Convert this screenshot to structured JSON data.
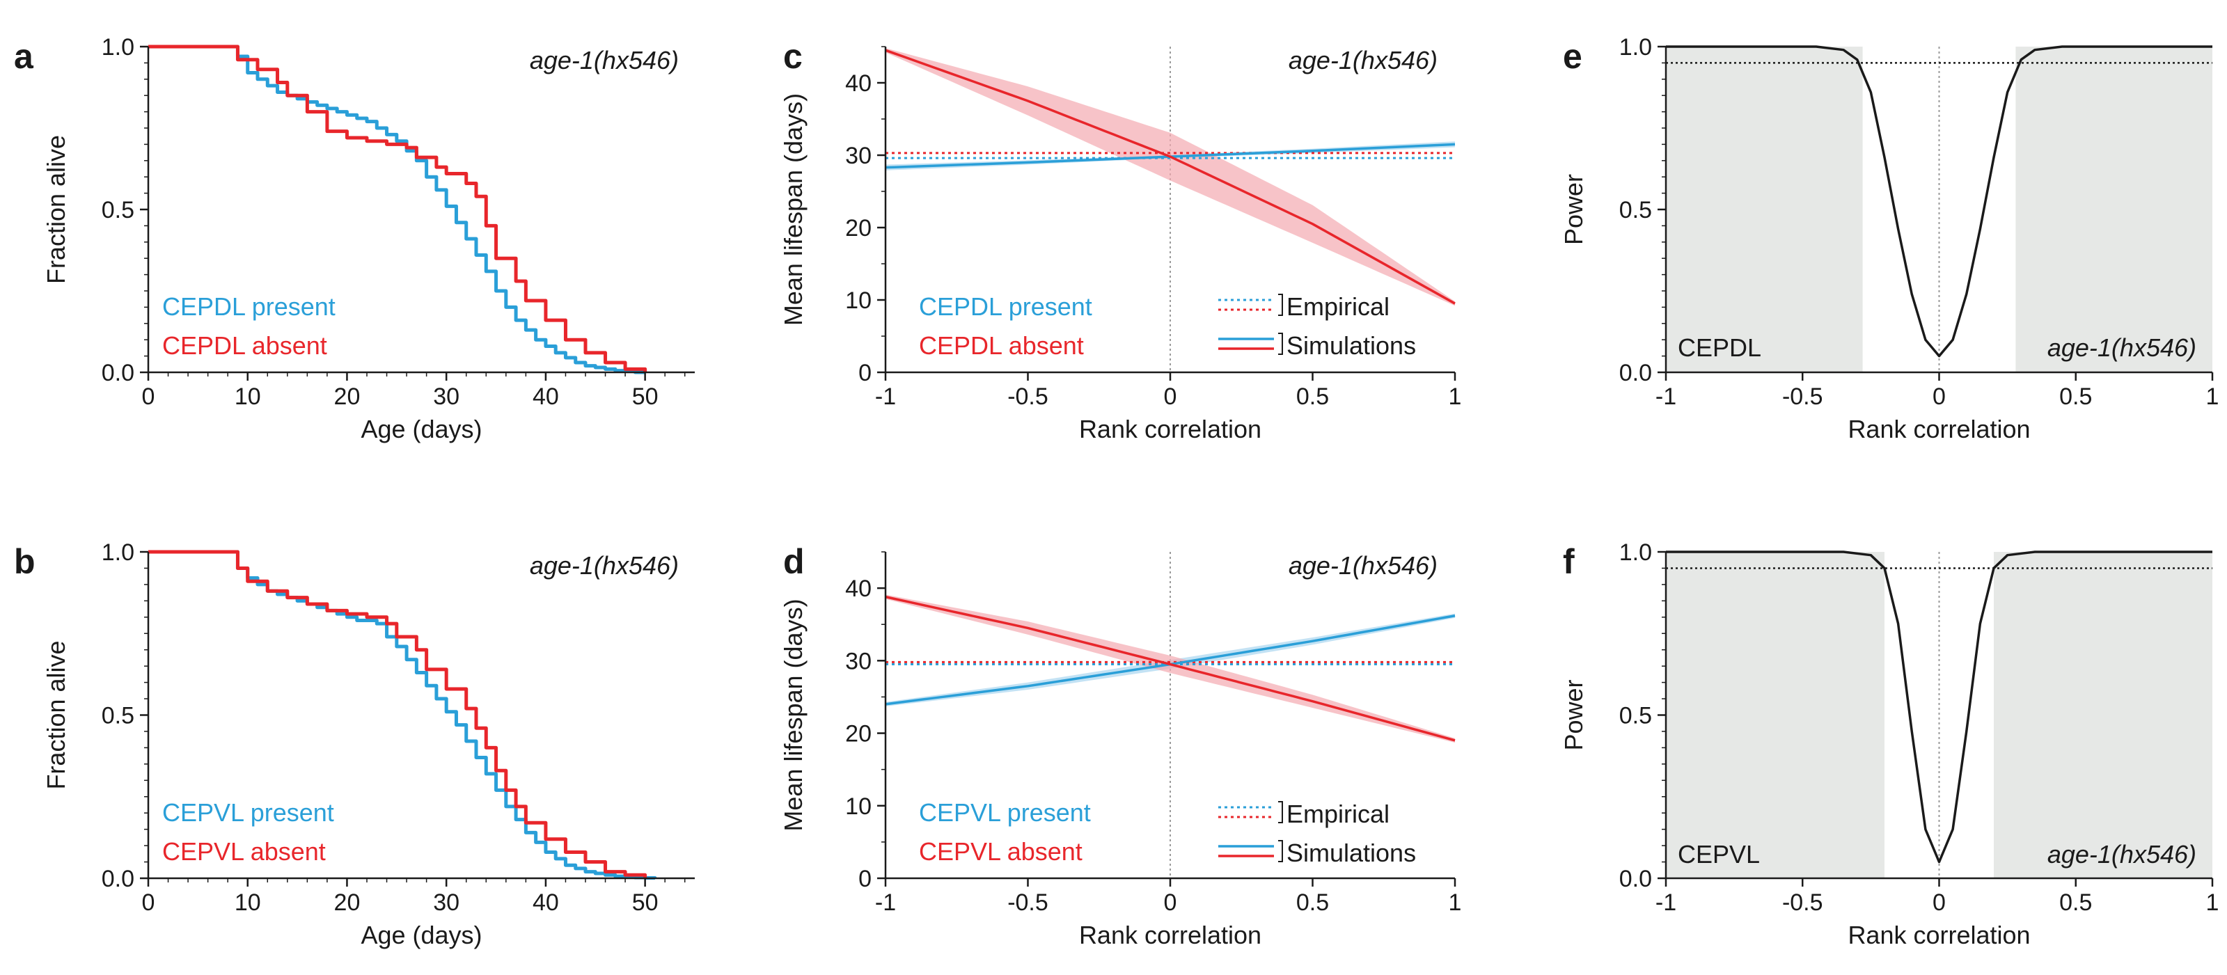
{
  "colors": {
    "blue": "#2a9fd8",
    "red": "#e8262b",
    "red_band": "#f4a9b0",
    "blue_band": "#a9d6ef",
    "gray_band": "#e6e8e6",
    "black": "#1a1a1a",
    "guide": "#9a9a9a"
  },
  "chart_data": [
    {
      "panel": "a",
      "type": "line",
      "style": "step",
      "annotation": "age-1(hx546)",
      "xlabel": "Age (days)",
      "ylabel": "Fraction alive",
      "xlim": [
        0,
        55
      ],
      "ylim": [
        0,
        1.0
      ],
      "xticks": [
        0,
        10,
        20,
        30,
        40,
        50
      ],
      "xticklabels": [
        "0",
        "10",
        "20",
        "30",
        "40",
        "50"
      ],
      "yticks": [
        0,
        0.5,
        1.0
      ],
      "yticklabels": [
        "0.0",
        "0.5",
        "1.0"
      ],
      "legend": [
        {
          "label": "CEPDL present",
          "color": "blue"
        },
        {
          "label": "CEPDL absent",
          "color": "red"
        }
      ],
      "series": [
        {
          "name": "CEPDL present",
          "color": "blue",
          "x": [
            0,
            8,
            9,
            10,
            11,
            12,
            13,
            14,
            15,
            16,
            17,
            18,
            19,
            20,
            21,
            22,
            23,
            24,
            25,
            26,
            27,
            28,
            29,
            30,
            31,
            32,
            33,
            34,
            35,
            36,
            37,
            38,
            39,
            40,
            41,
            42,
            43,
            44,
            45,
            46,
            47,
            48,
            49,
            50
          ],
          "y": [
            1.0,
            1.0,
            0.97,
            0.92,
            0.9,
            0.88,
            0.86,
            0.85,
            0.84,
            0.83,
            0.82,
            0.81,
            0.8,
            0.79,
            0.78,
            0.77,
            0.75,
            0.73,
            0.71,
            0.68,
            0.65,
            0.6,
            0.56,
            0.51,
            0.46,
            0.41,
            0.36,
            0.31,
            0.25,
            0.2,
            0.16,
            0.13,
            0.1,
            0.08,
            0.06,
            0.045,
            0.03,
            0.02,
            0.015,
            0.01,
            0.005,
            0.003,
            0.0,
            0.0
          ]
        },
        {
          "name": "CEPDL absent",
          "color": "red",
          "x": [
            0,
            8,
            9,
            11,
            13,
            14,
            16,
            18,
            20,
            22,
            24,
            26,
            27,
            29,
            30,
            32,
            33,
            34,
            35,
            37,
            38,
            40,
            42,
            44,
            46,
            48,
            50
          ],
          "y": [
            1.0,
            1.0,
            0.96,
            0.93,
            0.89,
            0.85,
            0.8,
            0.74,
            0.72,
            0.71,
            0.7,
            0.69,
            0.66,
            0.63,
            0.61,
            0.58,
            0.54,
            0.45,
            0.35,
            0.28,
            0.22,
            0.16,
            0.1,
            0.06,
            0.03,
            0.01,
            0.0
          ]
        }
      ]
    },
    {
      "panel": "b",
      "type": "line",
      "style": "step",
      "annotation": "age-1(hx546)",
      "xlabel": "Age (days)",
      "ylabel": "Fraction alive",
      "xlim": [
        0,
        55
      ],
      "ylim": [
        0,
        1.0
      ],
      "xticks": [
        0,
        10,
        20,
        30,
        40,
        50
      ],
      "xticklabels": [
        "0",
        "10",
        "20",
        "30",
        "40",
        "50"
      ],
      "yticks": [
        0,
        0.5,
        1.0
      ],
      "yticklabels": [
        "0.0",
        "0.5",
        "1.0"
      ],
      "legend": [
        {
          "label": "CEPVL present",
          "color": "blue"
        },
        {
          "label": "CEPVL absent",
          "color": "red"
        }
      ],
      "series": [
        {
          "name": "CEPVL present",
          "color": "blue",
          "x": [
            0,
            8,
            9,
            10,
            11,
            12,
            13,
            14,
            15,
            16,
            17,
            18,
            19,
            20,
            21,
            22,
            23,
            24,
            25,
            26,
            27,
            28,
            29,
            30,
            31,
            32,
            33,
            34,
            35,
            36,
            37,
            38,
            39,
            40,
            41,
            42,
            43,
            44,
            45,
            46,
            47,
            48,
            49,
            50,
            51
          ],
          "y": [
            1.0,
            1.0,
            0.95,
            0.92,
            0.9,
            0.88,
            0.87,
            0.86,
            0.85,
            0.84,
            0.83,
            0.82,
            0.81,
            0.8,
            0.79,
            0.79,
            0.78,
            0.74,
            0.71,
            0.67,
            0.63,
            0.59,
            0.55,
            0.51,
            0.47,
            0.42,
            0.37,
            0.32,
            0.27,
            0.22,
            0.18,
            0.14,
            0.11,
            0.08,
            0.06,
            0.04,
            0.03,
            0.02,
            0.015,
            0.01,
            0.006,
            0.004,
            0.002,
            0.001,
            0.0
          ]
        },
        {
          "name": "CEPVL absent",
          "color": "red",
          "x": [
            0,
            8,
            9,
            10,
            12,
            14,
            16,
            18,
            20,
            22,
            24,
            25,
            27,
            28,
            30,
            32,
            33,
            34,
            35,
            36,
            37,
            38,
            40,
            42,
            44,
            46,
            48,
            50
          ],
          "y": [
            1.0,
            1.0,
            0.95,
            0.91,
            0.88,
            0.86,
            0.84,
            0.82,
            0.81,
            0.8,
            0.78,
            0.74,
            0.7,
            0.64,
            0.58,
            0.52,
            0.46,
            0.4,
            0.33,
            0.27,
            0.22,
            0.17,
            0.12,
            0.08,
            0.05,
            0.02,
            0.01,
            0.0
          ]
        }
      ]
    },
    {
      "panel": "c",
      "type": "line",
      "annotation": "age-1(hx546)",
      "xlabel": "Rank correlation",
      "ylabel": "Mean lifespan (days)",
      "xlim": [
        -1,
        1
      ],
      "ylim": [
        0,
        45
      ],
      "xticks": [
        -1,
        -0.5,
        0,
        0.5,
        1
      ],
      "xticklabels": [
        "-1",
        "-0.5",
        "0",
        "0.5",
        "1"
      ],
      "yticks": [
        0,
        10,
        20,
        30,
        40
      ],
      "yticklabels": [
        "0",
        "10",
        "20",
        "30",
        "40"
      ],
      "legend": [
        {
          "label": "CEPDL present",
          "color": "blue"
        },
        {
          "label": "CEPDL absent",
          "color": "red"
        }
      ],
      "key": {
        "empirical": "Empirical",
        "simulations": "Simulations"
      },
      "empirical": {
        "present": 29.6,
        "absent": 30.3
      },
      "series": [
        {
          "name": "CEPDL present",
          "color": "blue",
          "x": [
            -1,
            -0.5,
            0,
            0.5,
            1
          ],
          "y": [
            28.3,
            29.0,
            29.8,
            30.6,
            31.5
          ],
          "band": [
            0.4,
            0.3,
            0.2,
            0.3,
            0.4
          ]
        },
        {
          "name": "CEPDL absent",
          "color": "red",
          "x": [
            -1,
            -0.5,
            0,
            0.5,
            1
          ],
          "y": [
            44.5,
            37.5,
            29.8,
            20.5,
            9.5
          ],
          "band": [
            0.3,
            2.0,
            3.3,
            2.6,
            0.3
          ]
        }
      ]
    },
    {
      "panel": "d",
      "type": "line",
      "annotation": "age-1(hx546)",
      "xlabel": "Rank correlation",
      "ylabel": "Mean lifespan (days)",
      "xlim": [
        -1,
        1
      ],
      "ylim": [
        0,
        45
      ],
      "xticks": [
        -1,
        -0.5,
        0,
        0.5,
        1
      ],
      "xticklabels": [
        "-1",
        "-0.5",
        "0",
        "0.5",
        "1"
      ],
      "yticks": [
        0,
        10,
        20,
        30,
        40
      ],
      "yticklabels": [
        "0",
        "10",
        "20",
        "30",
        "40"
      ],
      "legend": [
        {
          "label": "CEPVL present",
          "color": "blue"
        },
        {
          "label": "CEPVL absent",
          "color": "red"
        }
      ],
      "key": {
        "empirical": "Empirical",
        "simulations": "Simulations"
      },
      "empirical": {
        "present": 29.5,
        "absent": 29.8
      },
      "series": [
        {
          "name": "CEPVL present",
          "color": "blue",
          "x": [
            -1,
            -0.5,
            0,
            0.5,
            1
          ],
          "y": [
            24.0,
            26.5,
            29.5,
            32.7,
            36.2
          ],
          "band": [
            0.3,
            0.5,
            0.6,
            0.5,
            0.3
          ]
        },
        {
          "name": "CEPVL absent",
          "color": "red",
          "x": [
            -1,
            -0.5,
            0,
            0.5,
            1
          ],
          "y": [
            38.8,
            34.5,
            29.5,
            24.4,
            19.0
          ],
          "band": [
            0.3,
            0.9,
            1.2,
            0.9,
            0.3
          ]
        }
      ]
    },
    {
      "panel": "e",
      "type": "line",
      "annotation": "age-1(hx546)",
      "inset_label": "CEPDL",
      "xlabel": "Rank correlation",
      "ylabel": "Power",
      "xlim": [
        -1,
        1
      ],
      "ylim": [
        0,
        1.0
      ],
      "xticks": [
        -1,
        -0.5,
        0,
        0.5,
        1
      ],
      "xticklabels": [
        "-1",
        "-0.5",
        "0",
        "0.5",
        "1"
      ],
      "yticks": [
        0,
        0.5,
        1.0
      ],
      "yticklabels": [
        "0.0",
        "0.5",
        "1.0"
      ],
      "threshold": 0.95,
      "shaded_ranges": [
        [
          -1,
          -0.28
        ],
        [
          0.28,
          1
        ]
      ],
      "series": [
        {
          "name": "Power",
          "color": "black",
          "x": [
            -1,
            -0.45,
            -0.35,
            -0.3,
            -0.25,
            -0.2,
            -0.15,
            -0.1,
            -0.05,
            0,
            0.05,
            0.1,
            0.15,
            0.2,
            0.25,
            0.3,
            0.35,
            0.45,
            1
          ],
          "y": [
            1.0,
            1.0,
            0.99,
            0.96,
            0.86,
            0.66,
            0.44,
            0.24,
            0.1,
            0.05,
            0.1,
            0.24,
            0.44,
            0.66,
            0.86,
            0.96,
            0.99,
            1.0,
            1.0
          ]
        }
      ]
    },
    {
      "panel": "f",
      "type": "line",
      "annotation": "age-1(hx546)",
      "inset_label": "CEPVL",
      "xlabel": "Rank correlation",
      "ylabel": "Power",
      "xlim": [
        -1,
        1
      ],
      "ylim": [
        0,
        1.0
      ],
      "xticks": [
        -1,
        -0.5,
        0,
        0.5,
        1
      ],
      "xticklabels": [
        "-1",
        "-0.5",
        "0",
        "0.5",
        "1"
      ],
      "yticks": [
        0,
        0.5,
        1.0
      ],
      "yticklabels": [
        "0.0",
        "0.5",
        "1.0"
      ],
      "threshold": 0.95,
      "shaded_ranges": [
        [
          -1,
          -0.2
        ],
        [
          0.2,
          1
        ]
      ],
      "series": [
        {
          "name": "Power",
          "color": "black",
          "x": [
            -1,
            -0.35,
            -0.25,
            -0.2,
            -0.15,
            -0.1,
            -0.05,
            0,
            0.05,
            0.1,
            0.15,
            0.2,
            0.25,
            0.35,
            1
          ],
          "y": [
            1.0,
            1.0,
            0.99,
            0.95,
            0.78,
            0.45,
            0.15,
            0.05,
            0.15,
            0.45,
            0.78,
            0.95,
            0.99,
            1.0,
            1.0
          ]
        }
      ]
    }
  ]
}
